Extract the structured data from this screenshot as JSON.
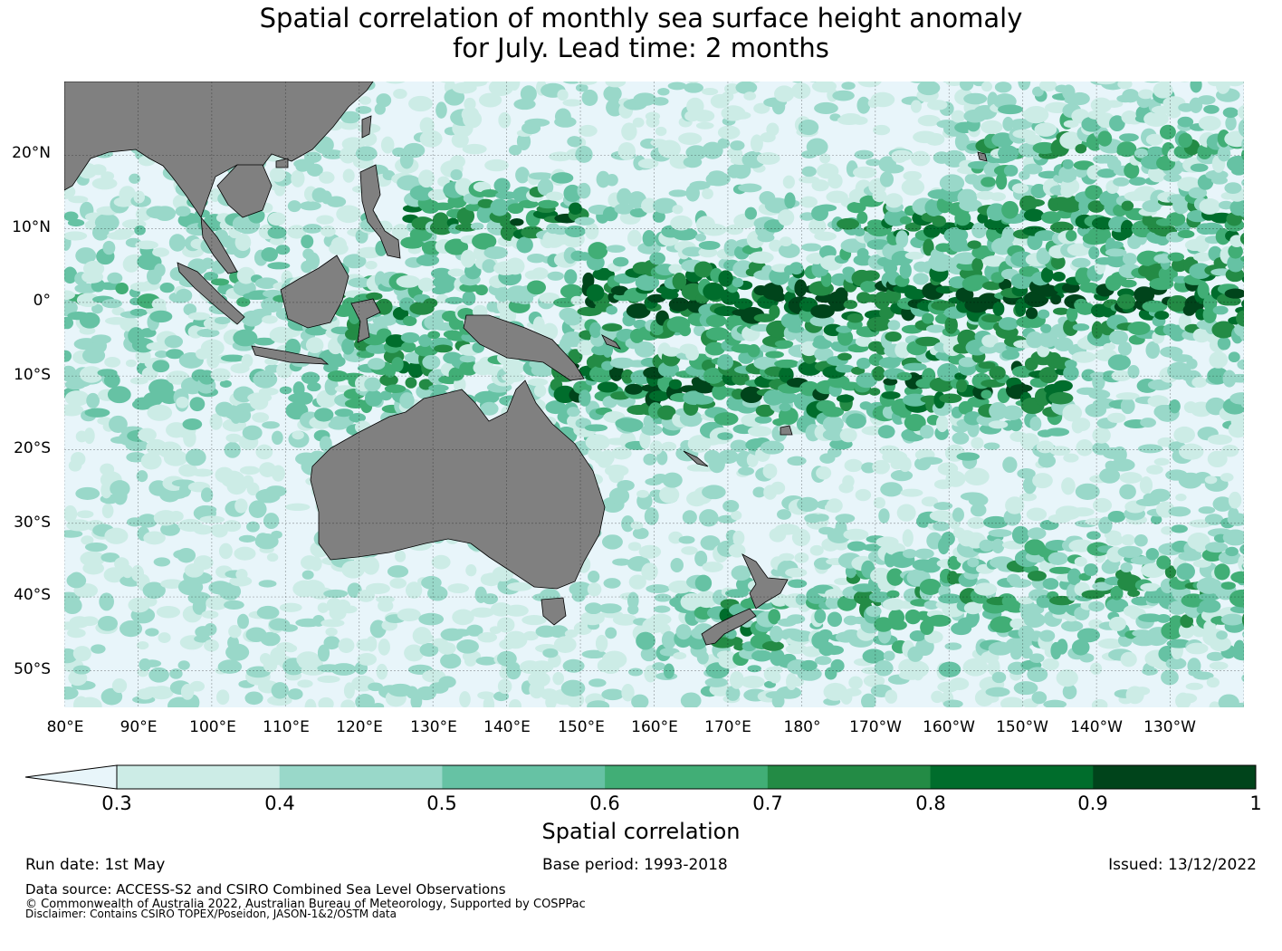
{
  "title": {
    "line1": "Spatial correlation of monthly sea surface height anomaly",
    "line2": "for July. Lead time: 2 months"
  },
  "map": {
    "lon_range": [
      80,
      240
    ],
    "lat_range": [
      -55,
      30
    ],
    "lat_labels": [
      "20°N",
      "10°N",
      "0°",
      "10°S",
      "20°S",
      "30°S",
      "40°S",
      "50°S"
    ],
    "lon_labels": [
      "80°E",
      "90°E",
      "100°E",
      "110°E",
      "120°E",
      "130°E",
      "140°E",
      "150°E",
      "160°E",
      "170°E",
      "180°",
      "170°W",
      "160°W",
      "150°W",
      "140°W",
      "130°W"
    ],
    "land_color": "#808080",
    "ocean_low_color": "#e8f5fa",
    "grid": true
  },
  "colorbar": {
    "ticks": [
      "0.3",
      "0.4",
      "0.5",
      "0.6",
      "0.7",
      "0.8",
      "0.9",
      "1"
    ],
    "colors": [
      "#ccece6",
      "#99d8c9",
      "#66c2a4",
      "#41ae76",
      "#238b45",
      "#006d2c",
      "#00441b"
    ],
    "under_color": "#e8f5fa",
    "label": "Spatial correlation"
  },
  "footer": {
    "run_date": "Run date: 1st May",
    "base_period": "Base period: 1993-2018",
    "issued": "Issued: 13/12/2022",
    "data_source": "Data source: ACCESS-S2 and CSIRO Combined Sea Level Observations",
    "copyright": "© Commonwealth of Australia 2022, Australian Bureau of Meteorology, Supported by COSPPac",
    "disclaimer": "Disclaimer: Contains CSIRO TOPEX/Poseidon, JASON-1&2/OSTM data"
  }
}
